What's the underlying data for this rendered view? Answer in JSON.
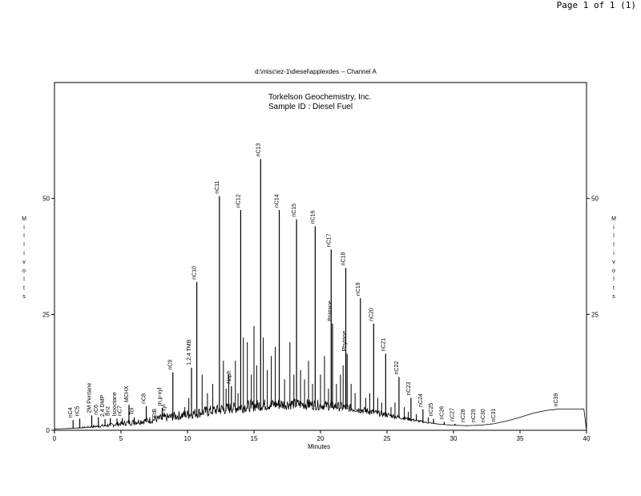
{
  "page_label": "Page 1 of 1 (1)",
  "chart_data": {
    "type": "line",
    "title": "d:\\misc\\ez-1\\diesel\\applexdes -- Channel A",
    "annotation": [
      "Torkelson Geochemistry, Inc.",
      "Sample ID  : Diesel Fuel"
    ],
    "xlabel": "Minutes",
    "ylabel": "Millivolts",
    "xlim": [
      0,
      40
    ],
    "ylim": [
      0,
      75
    ],
    "x_ticks": [
      0,
      5,
      10,
      15,
      20,
      25,
      30,
      35,
      40
    ],
    "y_ticks": [
      0,
      25,
      50
    ],
    "y_ticks_right": [
      25,
      50
    ],
    "grid": false,
    "baseline": [
      [
        0,
        0.3
      ],
      [
        1.2,
        0.4
      ],
      [
        2,
        0.5
      ],
      [
        3,
        0.7
      ],
      [
        4,
        0.9
      ],
      [
        5,
        1.2
      ],
      [
        6,
        1.5
      ],
      [
        7,
        1.8
      ],
      [
        8,
        2.2
      ],
      [
        9,
        2.6
      ],
      [
        10,
        3
      ],
      [
        11,
        3.4
      ],
      [
        12,
        3.8
      ],
      [
        13,
        4.2
      ],
      [
        14,
        4.5
      ],
      [
        15,
        4.8
      ],
      [
        16,
        5
      ],
      [
        17,
        5.1
      ],
      [
        18,
        5.2
      ],
      [
        19,
        5.1
      ],
      [
        20,
        5
      ],
      [
        21,
        4.8
      ],
      [
        22,
        4.5
      ],
      [
        23,
        4.1
      ],
      [
        24,
        3.6
      ],
      [
        25,
        3.1
      ],
      [
        26,
        2.6
      ],
      [
        27,
        2.1
      ],
      [
        28,
        1.6
      ],
      [
        29,
        1.3
      ],
      [
        30,
        1.1
      ],
      [
        31,
        1
      ],
      [
        32,
        1.1
      ],
      [
        33,
        1.4
      ],
      [
        34,
        2
      ],
      [
        35,
        2.8
      ],
      [
        36,
        3.7
      ],
      [
        37,
        4.3
      ],
      [
        38,
        4.6
      ],
      [
        39,
        4.6
      ],
      [
        39.8,
        4.6
      ],
      [
        40,
        0
      ]
    ],
    "peaks": [
      {
        "label": "nC4",
        "x": 1.4,
        "y": 2.2
      },
      {
        "label": "nC5",
        "x": 1.9,
        "y": 2.5
      },
      {
        "label": "2M Pentane",
        "x": 2.8,
        "y": 3.2
      },
      {
        "label": "nC6",
        "x": 3.3,
        "y": 2.8
      },
      {
        "label": "2,4 DMP",
        "x": 3.8,
        "y": 2.4
      },
      {
        "label": "Bnz",
        "x": 4.2,
        "y": 2.6
      },
      {
        "label": "Isooctane",
        "x": 4.7,
        "y": 2.5
      },
      {
        "label": "nC7",
        "x": 5.1,
        "y": 2.6
      },
      {
        "label": "MCHX",
        "x": 5.6,
        "y": 5.5
      },
      {
        "label": "Tol",
        "x": 6,
        "y": 2.8
      },
      {
        "label": "nC8",
        "x": 6.9,
        "y": 5.2
      },
      {
        "label": "EtB",
        "x": 7.7,
        "y": 2.2
      },
      {
        "label": "m,p-xyl",
        "x": 8.1,
        "y": 4.8
      },
      {
        "label": "o-xyl",
        "x": 8.4,
        "y": 2.5
      },
      {
        "label": "nC9",
        "x": 8.9,
        "y": 12.5
      },
      {
        "label": "1,2,4 TMB",
        "x": 10.3,
        "y": 13.5
      },
      {
        "label": "nC10",
        "x": 10.7,
        "y": 32
      },
      {
        "label": "nC11",
        "x": 12.4,
        "y": 50.5
      },
      {
        "label": "Naph",
        "x": 13.3,
        "y": 9.5
      },
      {
        "label": "nC12",
        "x": 14,
        "y": 47.5
      },
      {
        "label": "nC13",
        "x": 15.5,
        "y": 58.5
      },
      {
        "label": "nC14",
        "x": 16.9,
        "y": 47.5
      },
      {
        "label": "nC15",
        "x": 18.2,
        "y": 45.5
      },
      {
        "label": "nC16",
        "x": 19.6,
        "y": 44
      },
      {
        "label": "nC17",
        "x": 20.8,
        "y": 39
      },
      {
        "label": "Pristane",
        "x": 20.9,
        "y": 23
      },
      {
        "label": "nC18",
        "x": 21.9,
        "y": 35
      },
      {
        "label": "Phytane",
        "x": 22,
        "y": 16.5
      },
      {
        "label": "nC19",
        "x": 23,
        "y": 28.5
      },
      {
        "label": "nC20",
        "x": 24,
        "y": 23
      },
      {
        "label": "nC21",
        "x": 24.9,
        "y": 16.5
      },
      {
        "label": "nC22",
        "x": 25.9,
        "y": 11.5
      },
      {
        "label": "nC23",
        "x": 26.8,
        "y": 7
      },
      {
        "label": "nC24",
        "x": 27.7,
        "y": 4.5
      },
      {
        "label": "nC25",
        "x": 28.5,
        "y": 2.5
      },
      {
        "label": "nC26",
        "x": 29.3,
        "y": 1.8
      },
      {
        "label": "nC27",
        "x": 30.1,
        "y": 1.4
      },
      {
        "label": "nC28",
        "x": 30.9,
        "y": 1.2
      },
      {
        "label": "nC29",
        "x": 31.7,
        "y": 1.2
      },
      {
        "label": "nC30",
        "x": 32.4,
        "y": 1.2
      },
      {
        "label": "nC31",
        "x": 33.2,
        "y": 1.3
      },
      {
        "label": "nC39",
        "x": 37.9,
        "y": 4.6
      }
    ],
    "minor_peaks": [
      [
        9.8,
        5
      ],
      [
        10.1,
        7
      ],
      [
        11.1,
        12
      ],
      [
        11.5,
        8
      ],
      [
        11.9,
        10
      ],
      [
        12.7,
        15
      ],
      [
        12.9,
        9
      ],
      [
        13.1,
        12
      ],
      [
        13.6,
        15
      ],
      [
        13.8,
        8
      ],
      [
        14.2,
        20
      ],
      [
        14.5,
        19
      ],
      [
        14.8,
        12
      ],
      [
        15,
        22.5
      ],
      [
        15.2,
        14
      ],
      [
        15.7,
        20
      ],
      [
        16,
        13
      ],
      [
        16.3,
        16
      ],
      [
        16.6,
        18
      ],
      [
        17.3,
        11
      ],
      [
        17.7,
        19
      ],
      [
        18,
        12
      ],
      [
        18.5,
        13
      ],
      [
        18.8,
        11
      ],
      [
        19.1,
        15
      ],
      [
        19.4,
        10
      ],
      [
        20,
        12
      ],
      [
        20.3,
        16
      ],
      [
        20.6,
        9
      ],
      [
        21.2,
        10
      ],
      [
        21.5,
        12
      ],
      [
        21.7,
        14
      ],
      [
        22.3,
        10
      ],
      [
        22.6,
        8
      ],
      [
        23.4,
        7
      ],
      [
        23.7,
        8
      ],
      [
        24.3,
        7
      ],
      [
        24.6,
        6
      ],
      [
        25.3,
        5
      ],
      [
        25.6,
        6
      ],
      [
        26.3,
        5
      ],
      [
        26.6,
        4
      ],
      [
        27.2,
        3.5
      ],
      [
        28.1,
        2.8
      ]
    ]
  }
}
